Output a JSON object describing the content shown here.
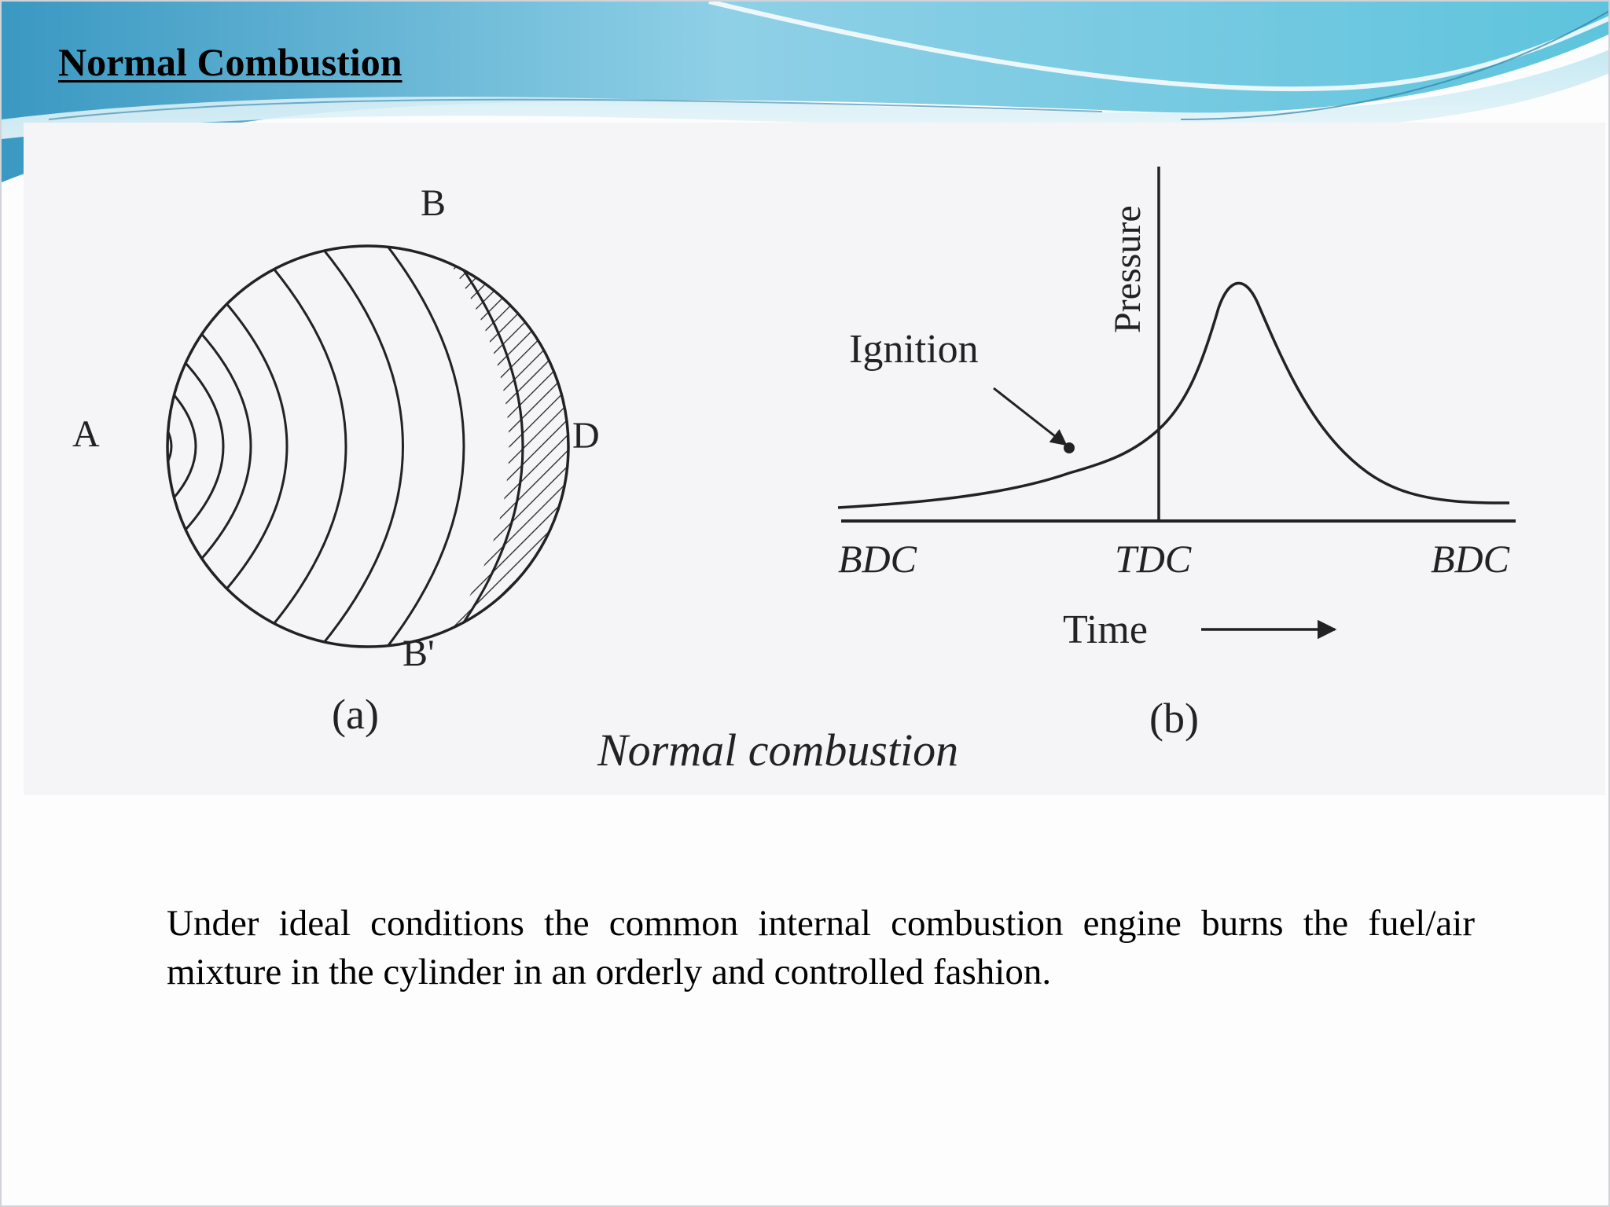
{
  "slide": {
    "title": "Normal Combustion",
    "body_text": "Under ideal conditions the common internal combustion engine burns the fuel/air mixture in the cylinder in an orderly and controlled fashion."
  },
  "figure": {
    "caption": "Normal combustion",
    "panel_a": {
      "label": "(a)",
      "point_labels": [
        "A",
        "B",
        "D",
        "B'"
      ]
    },
    "panel_b": {
      "label": "(b)",
      "y_axis_label": "Pressure",
      "x_axis_label": "Time",
      "x_tick_labels": [
        "BDC",
        "TDC",
        "BDC"
      ],
      "annotation": "Ignition"
    }
  },
  "colors": {
    "header_wave_dark": "#3fa3c8",
    "header_wave_light": "#a9dcec",
    "figure_background": "#f5f5f7",
    "line": "#222222"
  }
}
